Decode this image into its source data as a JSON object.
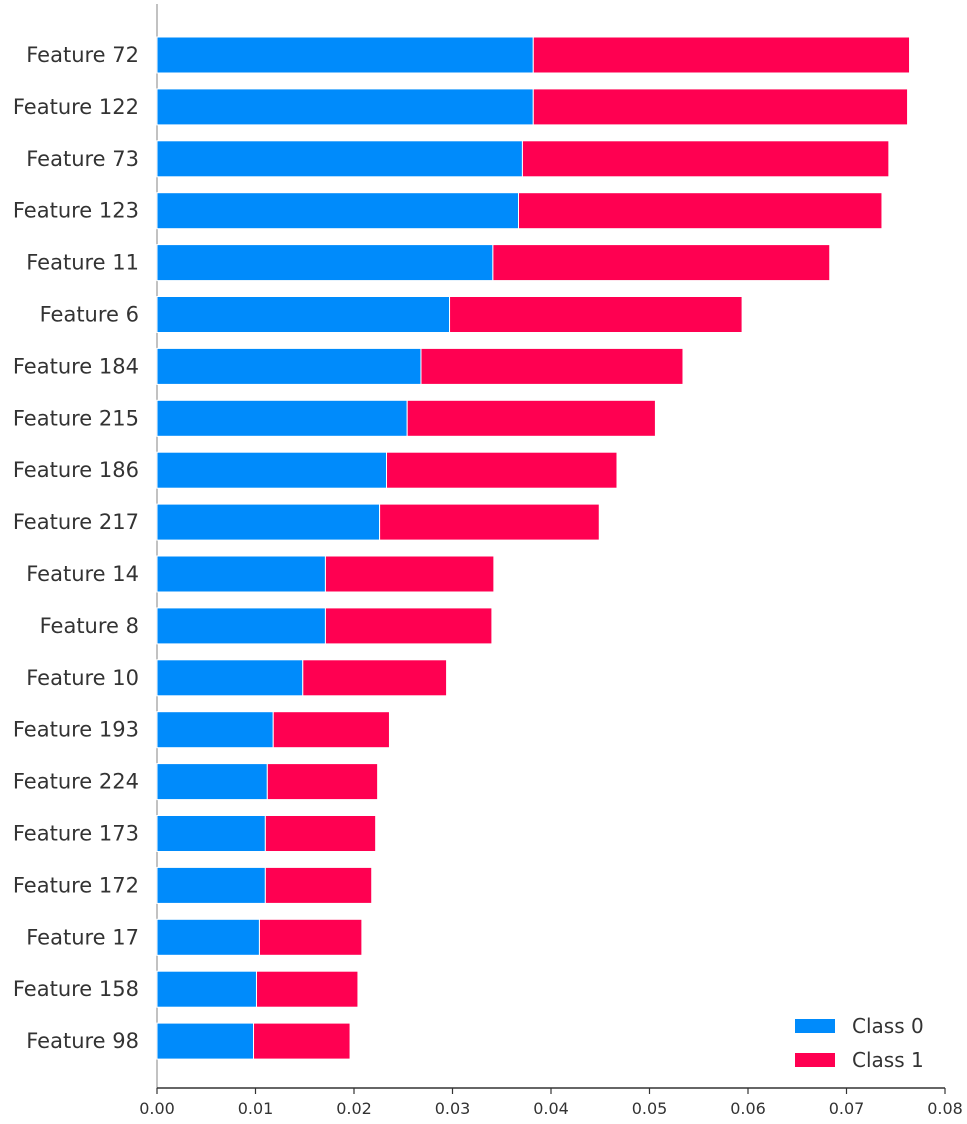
{
  "chart_data": {
    "type": "bar",
    "orientation": "horizontal",
    "stacked": true,
    "categories": [
      "Feature 72",
      "Feature 122",
      "Feature 73",
      "Feature 123",
      "Feature 11",
      "Feature 6",
      "Feature 184",
      "Feature 215",
      "Feature 186",
      "Feature 217",
      "Feature 14",
      "Feature 8",
      "Feature 10",
      "Feature 193",
      "Feature 224",
      "Feature 173",
      "Feature 172",
      "Feature 17",
      "Feature 158",
      "Feature 98"
    ],
    "series": [
      {
        "name": "Class 0",
        "color": "#008bfb",
        "values": [
          0.0382,
          0.0382,
          0.0371,
          0.0367,
          0.0341,
          0.0297,
          0.0268,
          0.0254,
          0.0233,
          0.0226,
          0.0171,
          0.0171,
          0.0148,
          0.0118,
          0.0112,
          0.011,
          0.011,
          0.0104,
          0.0101,
          0.0098
        ]
      },
      {
        "name": "Class 1",
        "color": "#ff0051",
        "values": [
          0.0382,
          0.038,
          0.0372,
          0.0369,
          0.0342,
          0.0297,
          0.0266,
          0.0252,
          0.0234,
          0.0223,
          0.0171,
          0.0169,
          0.0146,
          0.0118,
          0.0112,
          0.0112,
          0.0108,
          0.0104,
          0.0103,
          0.0098
        ]
      }
    ],
    "xticks": [
      "0.00",
      "0.01",
      "0.02",
      "0.03",
      "0.04",
      "0.05",
      "0.06",
      "0.07",
      "0.08"
    ],
    "xlim": [
      0,
      0.08
    ],
    "grid": false,
    "legend_position": "bottom-right",
    "title": "",
    "xlabel": "",
    "ylabel": ""
  }
}
